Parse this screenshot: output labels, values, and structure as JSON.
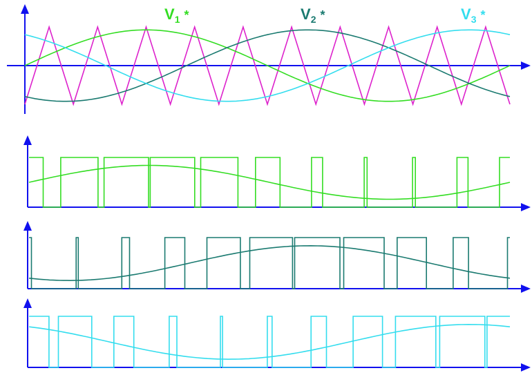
{
  "colors": {
    "axis": "#1010ee",
    "phase1": "#33dd22",
    "phase2": "#1a7a70",
    "phase3": "#33ddee",
    "carrier": "#dd22cc"
  },
  "carrier": {
    "periods": 10,
    "shape": "triangle"
  },
  "references": [
    {
      "name": "V",
      "sub": "1",
      "star": "*",
      "color_key": "phase1",
      "phase_deg": 0
    },
    {
      "name": "V",
      "sub": "2",
      "star": "*",
      "color_key": "phase2",
      "phase_deg": -120
    },
    {
      "name": "V",
      "sub": "3",
      "star": "*",
      "color_key": "phase3",
      "phase_deg": 120
    }
  ],
  "modulation_index": 0.85,
  "pulse_panels": [
    {
      "phase_index": 0
    },
    {
      "phase_index": 1
    },
    {
      "phase_index": 2
    }
  ]
}
